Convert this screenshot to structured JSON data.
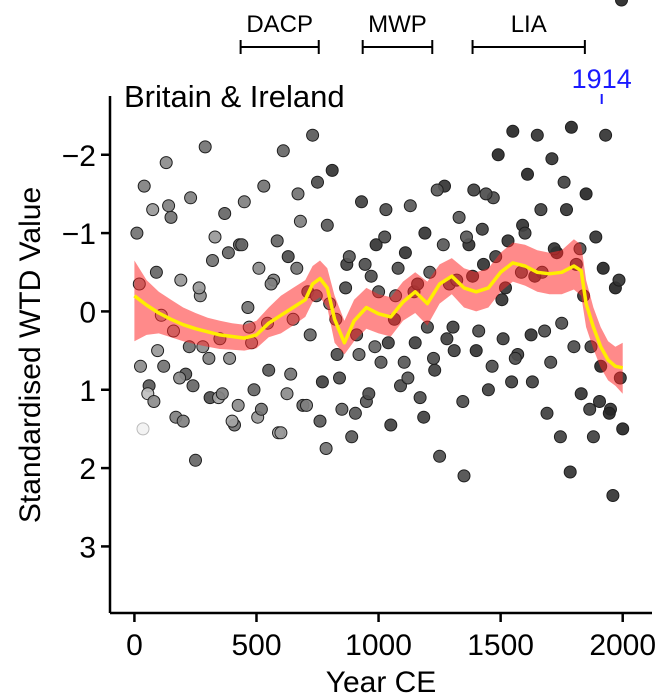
{
  "chart_data": {
    "type": "scatter",
    "title": "Britain & Ireland",
    "xlabel": "Year CE",
    "ylabel": "Standardised WTD Value",
    "xlim": [
      -100,
      2120
    ],
    "ylim": [
      3.85,
      -2.75
    ],
    "y_inverted": true,
    "xticks": [
      0,
      500,
      1000,
      1500,
      2000
    ],
    "yticks": [
      -2,
      -1,
      0,
      1,
      2,
      3
    ],
    "ytick_labels": [
      "−2",
      "−1",
      "0",
      "1",
      "2",
      "3"
    ],
    "grid": false,
    "periods": [
      {
        "label": "DACP",
        "start": 435,
        "end": 755
      },
      {
        "label": "MWP",
        "start": 935,
        "end": 1220
      },
      {
        "label": "LIA",
        "start": 1385,
        "end": 1845
      }
    ],
    "marker": {
      "label": "1914",
      "x": 1914,
      "color": "#1a1aff"
    },
    "smooth_line": {
      "color": "#ffee00",
      "x": [
        0,
        50,
        100,
        150,
        200,
        250,
        300,
        350,
        400,
        450,
        500,
        550,
        600,
        650,
        700,
        730,
        760,
        790,
        820,
        860,
        900,
        950,
        1000,
        1050,
        1100,
        1150,
        1200,
        1250,
        1300,
        1350,
        1400,
        1450,
        1500,
        1550,
        1600,
        1650,
        1700,
        1750,
        1800,
        1830,
        1850,
        1880,
        1910,
        1940,
        1970,
        2000
      ],
      "y": [
        -0.2,
        -0.08,
        0.02,
        0.1,
        0.17,
        0.22,
        0.26,
        0.3,
        0.32,
        0.34,
        0.3,
        0.15,
        0.05,
        -0.05,
        -0.15,
        -0.35,
        -0.42,
        -0.3,
        0.1,
        0.4,
        0.12,
        -0.05,
        0.03,
        0.07,
        -0.12,
        -0.25,
        -0.1,
        -0.35,
        -0.45,
        -0.3,
        -0.25,
        -0.3,
        -0.5,
        -0.62,
        -0.58,
        -0.5,
        -0.48,
        -0.5,
        -0.58,
        -0.52,
        -0.1,
        0.2,
        0.45,
        0.62,
        0.7,
        0.72
      ]
    },
    "band": {
      "color": "#ff2a2a",
      "opacity": 0.55,
      "x": [
        0,
        50,
        100,
        150,
        200,
        250,
        300,
        350,
        400,
        450,
        500,
        550,
        600,
        650,
        700,
        730,
        760,
        790,
        820,
        860,
        900,
        950,
        1000,
        1050,
        1100,
        1150,
        1200,
        1250,
        1300,
        1350,
        1400,
        1450,
        1500,
        1550,
        1600,
        1650,
        1700,
        1750,
        1800,
        1830,
        1850,
        1880,
        1910,
        1940,
        1970,
        2000
      ],
      "lower": [
        -0.65,
        -0.4,
        -0.25,
        -0.15,
        -0.05,
        0.02,
        0.08,
        0.12,
        0.15,
        0.17,
        0.12,
        -0.05,
        -0.2,
        -0.3,
        -0.4,
        -0.58,
        -0.65,
        -0.55,
        -0.2,
        0.12,
        -0.15,
        -0.3,
        -0.22,
        -0.18,
        -0.38,
        -0.5,
        -0.38,
        -0.6,
        -0.68,
        -0.55,
        -0.5,
        -0.55,
        -0.75,
        -0.88,
        -0.85,
        -0.78,
        -0.75,
        -0.78,
        -0.92,
        -0.85,
        -0.4,
        -0.05,
        0.2,
        0.38,
        0.45,
        0.4
      ],
      "upper": [
        0.38,
        0.3,
        0.28,
        0.33,
        0.38,
        0.42,
        0.45,
        0.48,
        0.49,
        0.5,
        0.47,
        0.33,
        0.28,
        0.18,
        0.07,
        -0.12,
        -0.18,
        -0.05,
        0.4,
        0.55,
        0.38,
        0.22,
        0.28,
        0.32,
        0.12,
        0.02,
        0.18,
        -0.1,
        -0.22,
        -0.05,
        0.0,
        -0.05,
        -0.25,
        -0.38,
        -0.33,
        -0.25,
        -0.22,
        -0.22,
        -0.28,
        -0.2,
        0.2,
        0.48,
        0.72,
        0.88,
        0.95,
        1.05
      ]
    },
    "points_x": [
      10,
      25,
      40,
      60,
      75,
      90,
      110,
      130,
      150,
      170,
      190,
      210,
      230,
      250,
      270,
      290,
      310,
      330,
      350,
      370,
      390,
      410,
      430,
      450,
      470,
      490,
      510,
      530,
      550,
      570,
      590,
      610,
      630,
      650,
      670,
      690,
      710,
      730,
      750,
      770,
      790,
      810,
      830,
      850,
      870,
      890,
      910,
      930,
      950,
      970,
      990,
      1010,
      1030,
      1050,
      1070,
      1090,
      1110,
      1130,
      1150,
      1170,
      1190,
      1210,
      1230,
      1250,
      1270,
      1290,
      1310,
      1330,
      1350,
      1370,
      1390,
      1410,
      1430,
      1450,
      1470,
      1490,
      1510,
      1530,
      1550,
      1570,
      1590,
      1610,
      1630,
      1650,
      1670,
      1690,
      1710,
      1730,
      1750,
      1770,
      1790,
      1810,
      1830,
      1850,
      1870,
      1890,
      1910,
      1930,
      1950,
      1970,
      1990,
      2000,
      20,
      55,
      95,
      140,
      185,
      225,
      265,
      305,
      345,
      385,
      425,
      465,
      505,
      545,
      585,
      625,
      665,
      705,
      745,
      785,
      825,
      865,
      905,
      945,
      985,
      1025,
      1065,
      1105,
      1145,
      1185,
      1225,
      1265,
      1305,
      1345,
      1385,
      1425,
      1465,
      1505,
      1545,
      1585,
      1625,
      1665,
      1705,
      1745,
      1785,
      1825,
      1865,
      1905,
      1945,
      1985,
      35,
      80,
      120,
      160,
      200,
      240,
      280,
      320,
      360,
      400,
      440,
      480,
      520,
      560,
      600,
      640,
      680,
      720,
      760,
      800,
      840,
      880,
      920,
      960,
      1000,
      1040,
      1080,
      1120,
      1160,
      1200,
      1240,
      1280,
      1320,
      1360,
      1400,
      1440,
      1480,
      1520,
      1560,
      1600,
      1640,
      1680,
      1720,
      1760,
      1800,
      1840,
      1880,
      1920,
      1960,
      1995
    ],
    "points_y": [
      -1.0,
      0.7,
      -1.6,
      0.95,
      -1.3,
      -0.5,
      0.05,
      -1.9,
      -1.2,
      1.35,
      -0.4,
      0.8,
      -1.45,
      1.9,
      -0.2,
      -2.1,
      1.1,
      -0.95,
      0.35,
      -1.25,
      0.6,
      1.45,
      -0.85,
      -1.4,
      0.2,
      1.0,
      -0.55,
      -1.6,
      0.75,
      -0.4,
      1.55,
      -2.05,
      -0.7,
      0.1,
      -1.5,
      1.2,
      -0.25,
      -2.25,
      -1.65,
      0.9,
      -1.1,
      -1.8,
      0.55,
      1.25,
      -0.6,
      1.6,
      0.3,
      -1.4,
      1.15,
      -0.45,
      -0.85,
      0.65,
      -1.3,
      1.45,
      -0.2,
      0.95,
      -0.75,
      -1.35,
      0.4,
      1.1,
      -1.0,
      -0.5,
      0.75,
      1.85,
      -1.6,
      -0.35,
      0.5,
      -1.2,
      2.1,
      -0.85,
      -1.55,
      0.25,
      -0.6,
      1.0,
      -1.45,
      -2.0,
      0.35,
      -0.9,
      -2.3,
      0.55,
      -1.1,
      -1.75,
      0.9,
      -2.25,
      -0.5,
      1.3,
      -1.95,
      -0.75,
      0.15,
      -1.3,
      -2.35,
      -0.6,
      1.05,
      -1.5,
      0.45,
      -0.95,
      0.7,
      -2.25,
      1.25,
      -0.3,
      0.85,
      1.5,
      -0.35,
      1.05,
      0.5,
      -1.35,
      0.85,
      0.45,
      -0.3,
      0.6,
      1.1,
      -0.75,
      1.2,
      -0.05,
      1.35,
      0.15,
      -0.9,
      1.05,
      -0.55,
      1.2,
      -0.2,
      1.75,
      0.1,
      -0.3,
      1.3,
      -0.6,
      0.45,
      -0.95,
      0.1,
      0.65,
      -0.25,
      1.35,
      0.6,
      -0.85,
      0.2,
      1.15,
      -0.45,
      -1.05,
      0.7,
      -0.15,
      0.9,
      -0.5,
      0.3,
      -1.3,
      0.65,
      1.6,
      2.05,
      -0.8,
      1.25,
      1.15,
      1.3,
      -0.4,
      1.5,
      1.15,
      0.7,
      0.25,
      1.4,
      0.95,
      0.45,
      -0.65,
      1.05,
      1.4,
      -0.85,
      0.4,
      1.25,
      -0.35,
      1.55,
      0.8,
      -1.15,
      0.3,
      1.4,
      -0.1,
      0.85,
      -0.7,
      0.55,
      1.05,
      -0.25,
      0.4,
      -0.55,
      0.85,
      -0.35,
      0.2,
      -1.55,
      0.35,
      -0.4,
      -0.95,
      0.5,
      -1.5,
      -0.7,
      -0.3,
      0.6,
      -1.0,
      -0.45,
      0.25,
      -0.8,
      -1.65,
      0.45,
      -0.2,
      1.6,
      -0.55,
      2.35
    ],
    "points_shade": [
      0.45,
      0.55,
      0.5,
      0.35,
      0.6,
      0.4,
      0.65,
      0.55,
      0.45,
      0.5,
      0.6,
      0.35,
      0.5,
      0.4,
      0.55,
      0.45,
      0.3,
      0.6,
      0.5,
      0.4,
      0.55,
      0.45,
      0.35,
      0.5,
      0.6,
      0.4,
      0.55,
      0.45,
      0.35,
      0.5,
      0.65,
      0.4,
      0.3,
      0.55,
      0.45,
      0.4,
      0.3,
      0.35,
      0.3,
      0.25,
      0.35,
      0.2,
      0.3,
      0.4,
      0.25,
      0.35,
      0.3,
      0.25,
      0.35,
      0.3,
      0.2,
      0.35,
      0.3,
      0.25,
      0.4,
      0.3,
      0.2,
      0.35,
      0.25,
      0.3,
      0.2,
      0.35,
      0.25,
      0.3,
      0.2,
      0.3,
      0.25,
      0.35,
      0.3,
      0.2,
      0.25,
      0.3,
      0.2,
      0.25,
      0.3,
      0.15,
      0.25,
      0.2,
      0.15,
      0.25,
      0.2,
      0.15,
      0.25,
      0.2,
      0.3,
      0.25,
      0.2,
      0.15,
      0.3,
      0.2,
      0.15,
      0.25,
      0.2,
      0.15,
      0.25,
      0.2,
      0.15,
      0.2,
      0.2,
      0.15,
      0.2,
      0.15,
      0.55,
      0.75,
      0.6,
      0.5,
      0.55,
      0.45,
      0.6,
      0.5,
      0.65,
      0.4,
      0.55,
      0.45,
      0.6,
      0.5,
      0.4,
      0.55,
      0.45,
      0.5,
      0.35,
      0.45,
      0.4,
      0.3,
      0.35,
      0.3,
      0.4,
      0.3,
      0.25,
      0.35,
      0.3,
      0.25,
      0.3,
      0.35,
      0.25,
      0.3,
      0.2,
      0.25,
      0.3,
      0.2,
      0.25,
      0.3,
      0.2,
      0.25,
      0.3,
      0.25,
      0.2,
      0.3,
      0.25,
      0.2,
      0.15,
      0.2,
      0.95,
      0.55,
      0.45,
      0.6,
      0.5,
      0.4,
      0.55,
      0.45,
      0.5,
      0.65,
      0.4,
      0.55,
      0.45,
      0.5,
      0.6,
      0.45,
      0.5,
      0.4,
      0.35,
      0.45,
      0.3,
      0.35,
      0.4,
      0.3,
      0.35,
      0.25,
      0.3,
      0.35,
      0.25,
      0.3,
      0.35,
      0.25,
      0.3,
      0.35,
      0.2,
      0.3,
      0.25,
      0.2,
      0.3,
      0.25,
      0.2,
      0.3,
      0.2,
      0.25,
      0.3,
      0.2,
      0.25,
      0.15,
      0.2,
      0.15
    ]
  }
}
